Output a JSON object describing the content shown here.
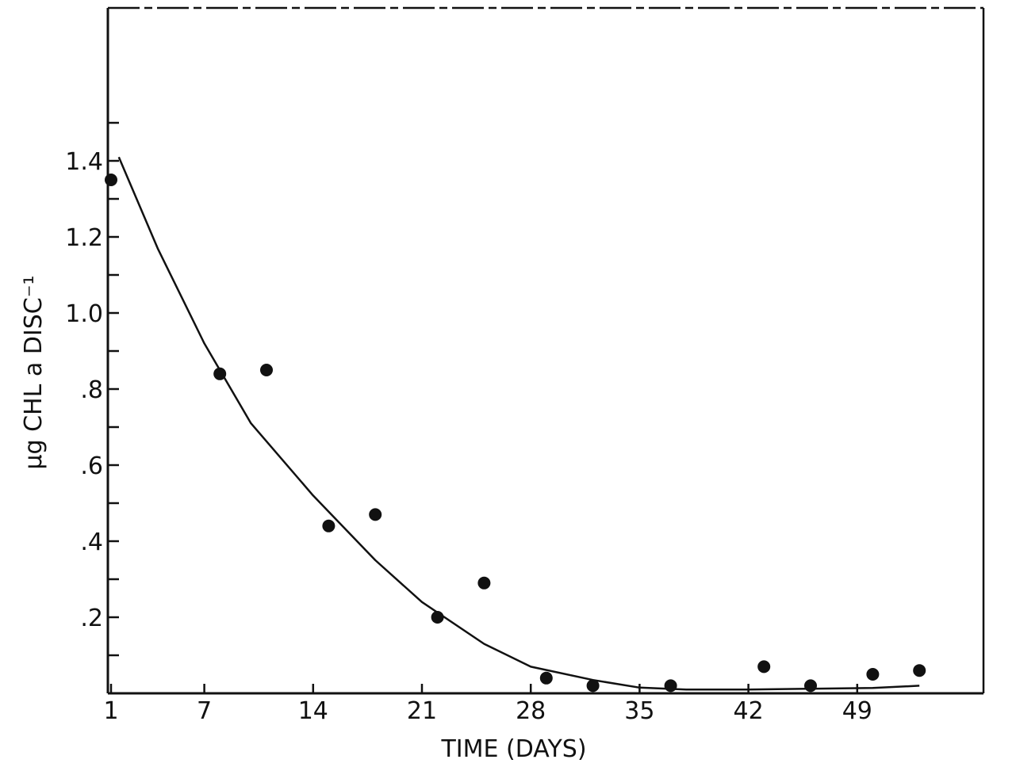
{
  "chart_data": {
    "type": "scatter",
    "title": "",
    "xlabel": "TIME (DAYS)",
    "ylabel": "µg CHL a DISC⁻¹",
    "xlim": [
      0,
      60
    ],
    "ylim": [
      0,
      1.5
    ],
    "grid": false,
    "x_ticks": [
      1,
      7,
      14,
      21,
      28,
      35,
      42,
      49
    ],
    "x_tick_labels": [
      "1",
      "7",
      "14",
      "21",
      "28",
      "35",
      "42",
      "49"
    ],
    "y_ticks": [
      0.2,
      0.4,
      0.6,
      0.8,
      1.0,
      1.2,
      1.4
    ],
    "y_tick_labels": [
      ".2",
      ".4",
      ".6",
      ".8",
      "1.0",
      "1.2",
      "1.4"
    ],
    "y_minor_ticks": [
      0.1,
      0.3,
      0.5,
      0.7,
      0.9,
      1.1,
      1.3,
      1.5
    ],
    "points": {
      "x": [
        1,
        8,
        11,
        15,
        18,
        22,
        25,
        29,
        32,
        37,
        43,
        46,
        50,
        53
      ],
      "y": [
        1.35,
        0.84,
        0.85,
        0.44,
        0.47,
        0.2,
        0.29,
        0.04,
        0.02,
        0.02,
        0.07,
        0.02,
        0.05,
        0.06
      ]
    },
    "fit_curve": {
      "x": [
        1.5,
        4,
        7,
        10,
        14,
        18,
        21,
        25,
        28,
        32,
        35,
        38,
        42,
        46,
        50,
        53
      ],
      "y": [
        1.41,
        1.17,
        0.92,
        0.71,
        0.52,
        0.35,
        0.24,
        0.13,
        0.07,
        0.035,
        0.015,
        0.01,
        0.01,
        0.012,
        0.014,
        0.02
      ]
    },
    "colors": {
      "ink": "#111111",
      "background": "#ffffff"
    }
  }
}
